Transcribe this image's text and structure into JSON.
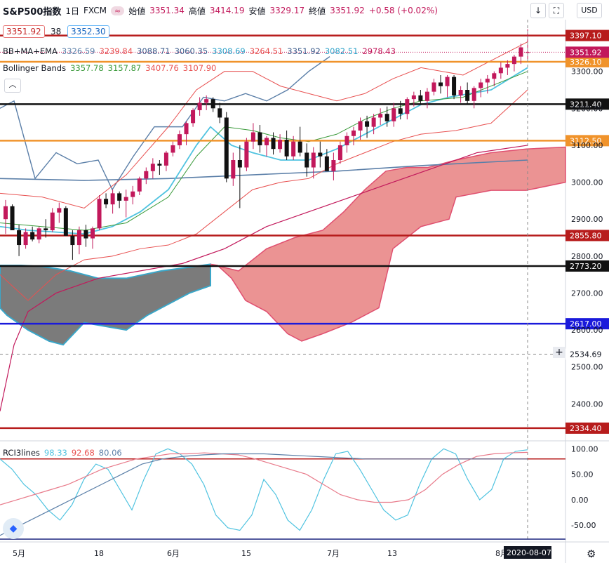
{
  "header": {
    "symbol": "S&P500指数",
    "interval": "1日",
    "source": "FXCM",
    "pill": "≈",
    "open_label": "始値",
    "open": "3351.34",
    "high_label": "高値",
    "high": "3414.19",
    "low_label": "安値",
    "low": "3329.17",
    "close_label": "終値",
    "close": "3351.92",
    "change": "+0.58 (+0.02%)"
  },
  "price_boxes": {
    "bid": "3351.92",
    "spread": "38",
    "ask": "3352.30"
  },
  "buttons": {
    "down": "↓",
    "expand": "⛶",
    "currency": "USD",
    "collapse": "︿",
    "settings": "⚙",
    "crosshair": "+"
  },
  "legend_bb": {
    "name": "BB+MA+EMA",
    "v1": "3326.59",
    "v2": "3239.84",
    "v3": "3088.71",
    "v4": "3060.35",
    "v5": "3308.69",
    "v6": "3264.51",
    "v7": "3351.92",
    "v8": "3082.51",
    "v9": "2978.43"
  },
  "legend_boll": {
    "name": "Bollinger Bands",
    "v1": "3357.78",
    "v2": "3157.87",
    "v3": "3407.76",
    "v4": "3107.90"
  },
  "legend_rci": {
    "name": "RCI3lines",
    "v1": "98.33",
    "v2": "92.68",
    "v3": "80.06"
  },
  "colors": {
    "up": "#c2185b",
    "down": "#111111",
    "red_line": "#b71c1c",
    "orange_line": "#f0932b",
    "black_line": "#111111",
    "blue_line": "#1a1adb",
    "kumo_red": "#e57373",
    "kumo_gray": "#666666",
    "ma_blue": "#5b7fa8",
    "light_blue": "#4fc3e0",
    "bb_green": "#3a9a3a",
    "bb_red": "#e85050"
  },
  "chart_data": {
    "type": "candlestick",
    "y_axis": {
      "ylim": [
        2300,
        3440
      ],
      "ticks": [
        2400,
        2500,
        2600,
        2700,
        2800,
        2900,
        3000,
        3100,
        3200,
        3300
      ]
    },
    "x_axis": {
      "tick_labels": [
        "5月",
        "18",
        "6月",
        "15",
        "7月",
        "13",
        "8月"
      ],
      "tick_dates": [
        "2020-05-01",
        "2020-05-18",
        "2020-06-01",
        "2020-06-15",
        "2020-07-01",
        "2020-07-13",
        "2020-08-03"
      ],
      "cursor_date": "2020-08-07"
    },
    "horizontal_levels": [
      {
        "value": 3397.1,
        "label": "3397.10",
        "color": "red"
      },
      {
        "value": 3326.1,
        "label": "3326.10",
        "color": "orange"
      },
      {
        "value": 3211.4,
        "label": "3211.40",
        "color": "black"
      },
      {
        "value": 3112.5,
        "label": "3112.50",
        "color": "orange"
      },
      {
        "value": 2855.8,
        "label": "2855.80",
        "color": "red"
      },
      {
        "value": 2773.2,
        "label": "2773.20",
        "color": "black"
      },
      {
        "value": 2617.0,
        "label": "2617.00",
        "color": "blue"
      },
      {
        "value": 2334.4,
        "label": "2334.40",
        "color": "red"
      }
    ],
    "current_price": {
      "value": 3351.92,
      "label": "3351.92"
    },
    "crosshair_price": {
      "value": 2534.69,
      "label": "2534.69"
    },
    "candles": [
      [
        2900,
        2952,
        2860,
        2935
      ],
      [
        2935,
        2940,
        2880,
        2870
      ],
      [
        2870,
        2885,
        2800,
        2830
      ],
      [
        2830,
        2875,
        2820,
        2865
      ],
      [
        2865,
        2880,
        2840,
        2845
      ],
      [
        2845,
        2880,
        2835,
        2875
      ],
      [
        2875,
        2900,
        2850,
        2870
      ],
      [
        2870,
        2930,
        2865,
        2918
      ],
      [
        2918,
        2945,
        2890,
        2930
      ],
      [
        2930,
        2935,
        2860,
        2855
      ],
      [
        2855,
        2870,
        2790,
        2830
      ],
      [
        2830,
        2880,
        2805,
        2870
      ],
      [
        2870,
        2885,
        2825,
        2848
      ],
      [
        2848,
        2880,
        2820,
        2875
      ],
      [
        2875,
        2965,
        2870,
        2955
      ],
      [
        2955,
        2970,
        2930,
        2940
      ],
      [
        2940,
        2980,
        2915,
        2970
      ],
      [
        2970,
        2975,
        2930,
        2950
      ],
      [
        2950,
        2980,
        2905,
        2960
      ],
      [
        2960,
        2990,
        2940,
        2975
      ],
      [
        2975,
        3015,
        2965,
        3010
      ],
      [
        3010,
        3040,
        2995,
        3030
      ],
      [
        3030,
        3065,
        3010,
        3050
      ],
      [
        3050,
        3060,
        3020,
        3045
      ],
      [
        3045,
        3085,
        3030,
        3080
      ],
      [
        3080,
        3110,
        3070,
        3100
      ],
      [
        3100,
        3140,
        3090,
        3130
      ],
      [
        3130,
        3165,
        3100,
        3160
      ],
      [
        3160,
        3200,
        3150,
        3195
      ],
      [
        3195,
        3230,
        3180,
        3215
      ],
      [
        3215,
        3235,
        3195,
        3225
      ],
      [
        3225,
        3230,
        3190,
        3200
      ],
      [
        3200,
        3215,
        3160,
        3175
      ],
      [
        3175,
        3190,
        3000,
        3010
      ],
      [
        3010,
        3080,
        2990,
        3060
      ],
      [
        3060,
        3100,
        2930,
        3040
      ],
      [
        3040,
        3120,
        3030,
        3110
      ],
      [
        3110,
        3160,
        3090,
        3135
      ],
      [
        3135,
        3155,
        3080,
        3100
      ],
      [
        3100,
        3125,
        3070,
        3120
      ],
      [
        3120,
        3135,
        3075,
        3090
      ],
      [
        3090,
        3130,
        3080,
        3115
      ],
      [
        3115,
        3140,
        3060,
        3070
      ],
      [
        3070,
        3125,
        3060,
        3110
      ],
      [
        3110,
        3150,
        3070,
        3080
      ],
      [
        3080,
        3105,
        3015,
        3040
      ],
      [
        3040,
        3095,
        3010,
        3080
      ],
      [
        3080,
        3110,
        3040,
        3070
      ],
      [
        3070,
        3090,
        3030,
        3030
      ],
      [
        3030,
        3080,
        3005,
        3060
      ],
      [
        3060,
        3110,
        3050,
        3100
      ],
      [
        3100,
        3135,
        3080,
        3125
      ],
      [
        3125,
        3150,
        3100,
        3140
      ],
      [
        3140,
        3175,
        3115,
        3165
      ],
      [
        3165,
        3180,
        3120,
        3150
      ],
      [
        3150,
        3185,
        3130,
        3175
      ],
      [
        3175,
        3200,
        3155,
        3185
      ],
      [
        3185,
        3205,
        3150,
        3165
      ],
      [
        3165,
        3215,
        3150,
        3200
      ],
      [
        3200,
        3220,
        3170,
        3185
      ],
      [
        3185,
        3230,
        3170,
        3225
      ],
      [
        3225,
        3245,
        3205,
        3235
      ],
      [
        3235,
        3250,
        3210,
        3220
      ],
      [
        3220,
        3255,
        3200,
        3245
      ],
      [
        3245,
        3280,
        3235,
        3270
      ],
      [
        3270,
        3290,
        3240,
        3260
      ],
      [
        3260,
        3290,
        3230,
        3285
      ],
      [
        3285,
        3290,
        3225,
        3235
      ],
      [
        3235,
        3260,
        3215,
        3250
      ],
      [
        3250,
        3270,
        3210,
        3220
      ],
      [
        3220,
        3260,
        3200,
        3255
      ],
      [
        3255,
        3280,
        3230,
        3270
      ],
      [
        3270,
        3290,
        3240,
        3280
      ],
      [
        3280,
        3300,
        3260,
        3295
      ],
      [
        3295,
        3325,
        3280,
        3310
      ],
      [
        3310,
        3330,
        3290,
        3320
      ],
      [
        3320,
        3345,
        3300,
        3340
      ],
      [
        3340,
        3375,
        3320,
        3365
      ],
      [
        3351,
        3414,
        3329,
        3352
      ]
    ],
    "rci": {
      "ylim": [
        -80,
        110
      ],
      "ticks": [
        100,
        50,
        0,
        -50
      ],
      "level": 80,
      "short": [
        80,
        60,
        30,
        10,
        -20,
        -40,
        -10,
        40,
        70,
        60,
        20,
        -20,
        40,
        90,
        100,
        90,
        70,
        30,
        -30,
        -55,
        -60,
        -30,
        40,
        10,
        -40,
        -60,
        -20,
        40,
        90,
        95,
        60,
        20,
        -20,
        -40,
        -30,
        30,
        80,
        100,
        90,
        40,
        0,
        20,
        80,
        95,
        98
      ],
      "mid": [
        -10,
        0,
        10,
        20,
        30,
        45,
        60,
        70,
        80,
        85,
        90,
        90,
        92,
        90,
        88,
        80,
        70,
        60,
        50,
        30,
        10,
        0,
        -5,
        -5,
        0,
        20,
        50,
        70,
        85,
        90,
        92,
        93
      ],
      "long": [
        -70,
        -50,
        -30,
        -10,
        10,
        30,
        50,
        70,
        80,
        85,
        88,
        90,
        90,
        90,
        88,
        86,
        84,
        82,
        80,
        80,
        80,
        80,
        80,
        80,
        80,
        80,
        80
      ]
    }
  }
}
